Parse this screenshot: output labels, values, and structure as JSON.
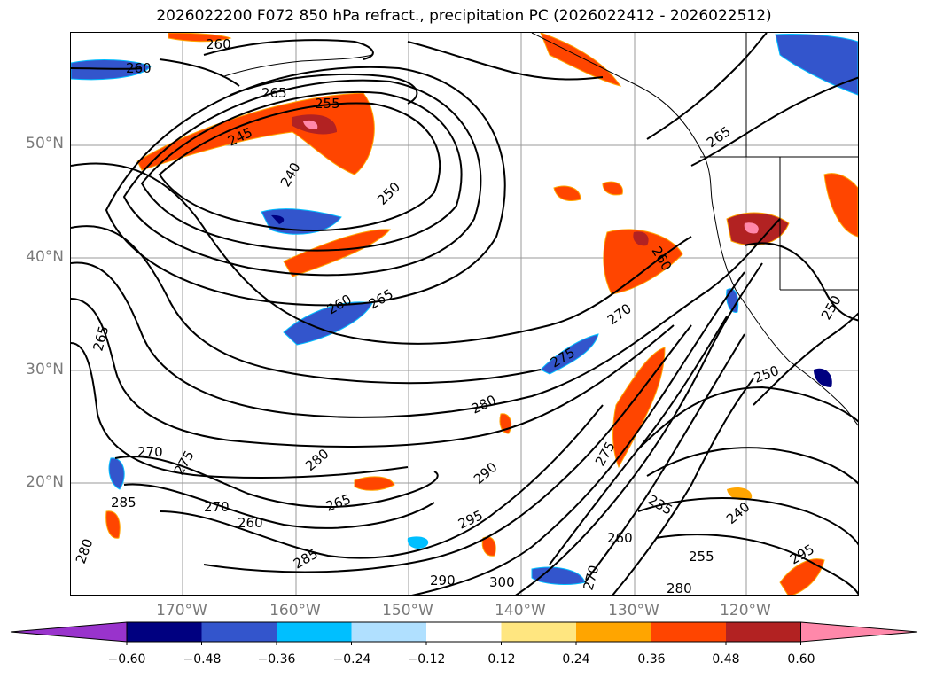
{
  "title": "2026022200 F072 850 hPa refract., precipitation PC (2026022412 - 2026022512)",
  "map": {
    "lat_labels": [
      "50°N",
      "40°N",
      "30°N",
      "20°N"
    ],
    "lon_labels": [
      "170°W",
      "160°W",
      "150°W",
      "140°W",
      "130°W",
      "120°W"
    ],
    "contour_labels": [
      "260",
      "260",
      "265",
      "255",
      "245",
      "240",
      "250",
      "260",
      "265",
      "270",
      "275",
      "280",
      "290",
      "295",
      "300",
      "290",
      "285",
      "280",
      "270",
      "275",
      "265",
      "265",
      "280",
      "285",
      "260",
      "270",
      "275",
      "235",
      "240",
      "250",
      "255",
      "260",
      "265",
      "270",
      "280",
      "295",
      "250",
      "260"
    ]
  },
  "colorbar": {
    "ticks": [
      "−0.60",
      "−0.48",
      "−0.36",
      "−0.24",
      "−0.12",
      "0.12",
      "0.24",
      "0.36",
      "0.48",
      "0.60"
    ],
    "colors": [
      "#9933cc",
      "#000080",
      "#3355cc",
      "#00bfff",
      "#b0e0ff",
      "#ffffff",
      "#ffe680",
      "#ffa500",
      "#ff4500",
      "#b22222",
      "#ff88aa"
    ]
  }
}
